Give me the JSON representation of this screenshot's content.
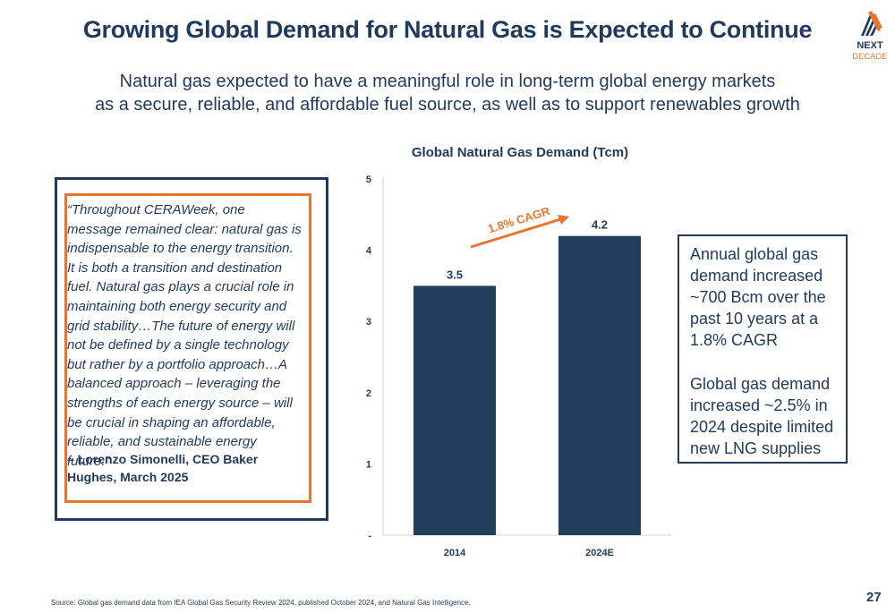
{
  "header": {
    "title": "Growing Global Demand for Natural Gas is Expected to Continue",
    "subtitle_lines": [
      "Natural gas expected to have a meaningful role in long-term global energy markets",
      "as a secure, reliable, and affordable fuel source, as well as to support renewables growth"
    ]
  },
  "logo": {
    "name": "NEXT",
    "sub": "DECADE",
    "icon": "nextdecade-logo-icon"
  },
  "quote": {
    "text": "“Throughout CERAWeek, one message remained clear: natural gas is indispensable to the energy transition. It is both a transition and destination fuel. Natural gas plays a crucial role in maintaining both energy security and grid stability…The future of energy will not be defined by a single technology but rather by a portfolio approach…A balanced approach – leveraging the strengths of each energy source – will be crucial in shaping an affordable, reliable, and sustainable energy future.”",
    "attribution": "– Lorenzo Simonelli, CEO Baker Hughes, March 2025"
  },
  "chart_data": {
    "type": "bar",
    "title": "Global Natural Gas Demand (Tcm)",
    "categories": [
      "2014",
      "2024E"
    ],
    "values": [
      3.5,
      4.2
    ],
    "data_labels": [
      "3.5",
      "4.2"
    ],
    "y_ticks": [
      "-",
      "1",
      "2",
      "3",
      "4",
      "5"
    ],
    "ylim": [
      0,
      5
    ],
    "grid": false,
    "annotation": "1.8% CAGR",
    "colors": {
      "bar": "#213e5c",
      "arrow": "#e8742e"
    }
  },
  "callout": {
    "paragraph1": "Annual global gas demand increased ~700 Bcm over the past 10 years at a 1.8% CAGR",
    "paragraph2": "Global gas demand increased ~2.5% in 2024 despite limited new LNG supplies"
  },
  "footer": {
    "source": "Source:  Global gas demand data from IEA Global Gas Security Review 2024, published October 2024, and Natural Gas Intelligence.",
    "page_number": "27"
  },
  "colors": {
    "navy": "#1f3a5c",
    "orange": "#e8742e"
  }
}
